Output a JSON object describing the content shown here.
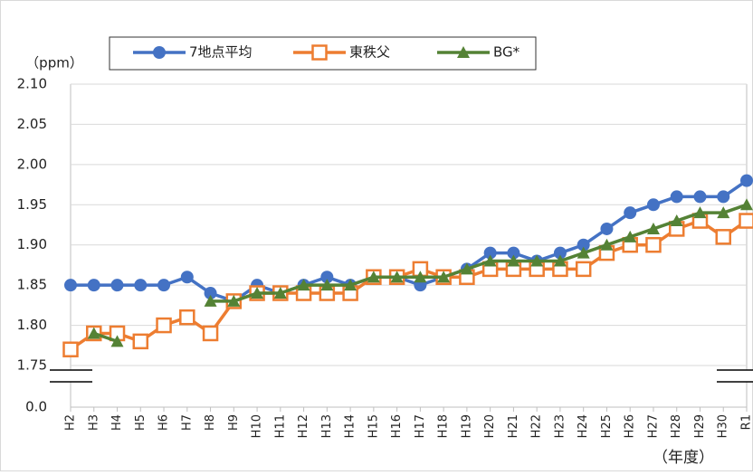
{
  "chart_data": {
    "type": "line",
    "y_axis_label": "（ppm）",
    "x_axis_label": "（年度）",
    "categories": [
      "H2",
      "H3",
      "H4",
      "H5",
      "H6",
      "H7",
      "H8",
      "H9",
      "H10",
      "H11",
      "H12",
      "H13",
      "H14",
      "H15",
      "H16",
      "H17",
      "H18",
      "H19",
      "H20",
      "H21",
      "H22",
      "H23",
      "H24",
      "H25",
      "H26",
      "H27",
      "H28",
      "H29",
      "H30",
      "R1"
    ],
    "series": [
      {
        "name": "7地点平均",
        "color": "#4472c4",
        "marker": "circle",
        "values": [
          1.85,
          1.85,
          1.85,
          1.85,
          1.85,
          1.86,
          1.84,
          1.83,
          1.85,
          1.84,
          1.85,
          1.86,
          1.85,
          1.86,
          1.86,
          1.85,
          1.86,
          1.87,
          1.89,
          1.89,
          1.88,
          1.89,
          1.9,
          1.92,
          1.94,
          1.95,
          1.96,
          1.96,
          1.96,
          1.98
        ]
      },
      {
        "name": "東秩父",
        "color": "#ed7d31",
        "marker": "square",
        "values": [
          1.77,
          1.79,
          1.79,
          1.78,
          1.8,
          1.81,
          1.79,
          1.83,
          1.84,
          1.84,
          1.84,
          1.84,
          1.84,
          1.86,
          1.86,
          1.87,
          1.86,
          1.86,
          1.87,
          1.87,
          1.87,
          1.87,
          1.87,
          1.89,
          1.9,
          1.9,
          1.92,
          1.93,
          1.91,
          1.93
        ]
      },
      {
        "name": "BG*",
        "color": "#548235",
        "marker": "triangle",
        "values": [
          null,
          1.79,
          1.78,
          null,
          null,
          null,
          1.83,
          1.83,
          1.84,
          1.84,
          1.85,
          1.85,
          1.85,
          1.86,
          1.86,
          1.86,
          1.86,
          1.87,
          1.88,
          1.88,
          1.88,
          1.88,
          1.89,
          1.9,
          1.91,
          1.92,
          1.93,
          1.94,
          1.94,
          1.95
        ]
      }
    ],
    "ylim": [
      0,
      2.1
    ],
    "axis_break": [
      0,
      1.75
    ],
    "yticks": [
      {
        "value": 0,
        "label": "0.0"
      },
      1.75,
      {
        "value": 1.8,
        "label": "1.80"
      },
      1.85,
      {
        "value": 1.9,
        "label": "1.90"
      },
      1.95,
      {
        "value": 2,
        "label": "2.00"
      },
      2.05,
      {
        "value": 2.1,
        "label": "2.10"
      }
    ],
    "grid": true
  }
}
